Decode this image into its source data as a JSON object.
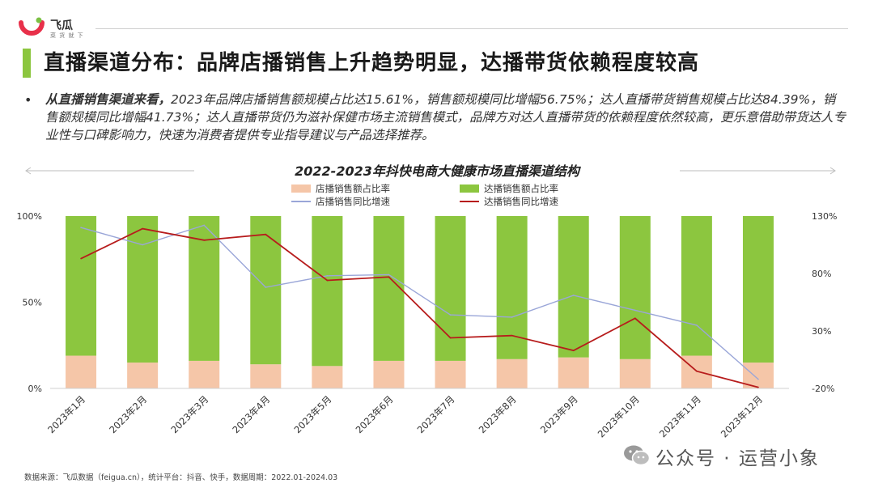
{
  "brand": {
    "name": "飞瓜",
    "slogan": "菜 货 就 下"
  },
  "slide_title": "直播渠道分布：品牌店播销售上升趋势明显，达播带货依赖程度较高",
  "bullet": {
    "lead": "从直播销售渠道来看，",
    "text": "2023年品牌店播销售额规模占比达15.61%，销售额规模同比增幅56.75%；达人直播带货销售规模占比达84.39%，销售额规模同比增幅41.73%；达人直播带货仍为滋补保健市场主流销售模式，品牌方对达人直播带货的依赖程度依然较高，更乐意借助带货达人专业性与口碑影响力，快速为消费者提供专业指导建议与产品选择推荐。"
  },
  "footer": {
    "source": "数据来源：飞瓜数据（feigua.cn），统计平台：抖音、快手，数据周期：2022.01-2024.03",
    "watermark": "公众号 · 运营小象"
  },
  "colors": {
    "store_bar": "#f5c6a8",
    "talent_bar": "#8cc63f",
    "store_line": "#9aa6d8",
    "talent_line": "#b71c1c",
    "title_accent": "#8cc63f"
  },
  "chart_data": {
    "type": "bar",
    "title": "2022-2023年抖快电商大健康市场直播渠道结构",
    "categories": [
      "2023年1月",
      "2023年2月",
      "2023年3月",
      "2023年4月",
      "2023年5月",
      "2023年6月",
      "2023年7月",
      "2023年8月",
      "2023年9月",
      "2023年10月",
      "2023年11月",
      "2023年12月"
    ],
    "stacked": true,
    "series": [
      {
        "name": "店播销售额占比率",
        "kind": "bar",
        "axis": "left",
        "values": [
          19,
          15,
          16,
          14,
          13,
          16,
          16,
          17,
          18,
          17,
          19,
          15
        ]
      },
      {
        "name": "达播销售额占比率",
        "kind": "bar",
        "axis": "left",
        "values": [
          81,
          85,
          84,
          86,
          87,
          84,
          84,
          83,
          82,
          83,
          81,
          85
        ]
      },
      {
        "name": "店播销售同比增速",
        "kind": "line",
        "axis": "right",
        "values": [
          120,
          105,
          122,
          68,
          78,
          79,
          44,
          42,
          61,
          48,
          35,
          -12
        ]
      },
      {
        "name": "达播销售同比增速",
        "kind": "line",
        "axis": "right",
        "values": [
          93,
          119,
          109,
          114,
          74,
          77,
          24,
          26,
          13,
          41,
          -5,
          -19
        ]
      }
    ],
    "y_left": {
      "ticks": [
        "0%",
        "50%",
        "100%"
      ],
      "range": [
        0,
        100
      ]
    },
    "y_right": {
      "ticks": [
        "-20%",
        "30%",
        "80%",
        "130%"
      ],
      "range": [
        -20,
        130
      ]
    },
    "legend_position": "top-center",
    "grid": false
  }
}
